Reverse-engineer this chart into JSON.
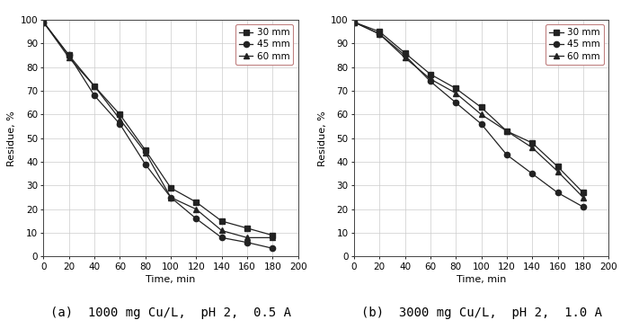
{
  "subplot_a": {
    "title": "(a)  1000 mg Cu/L,  pH 2,  0.5 A",
    "time": [
      0,
      20,
      40,
      60,
      80,
      100,
      120,
      140,
      160,
      180
    ],
    "series": [
      {
        "label": "30 mm",
        "marker": "s",
        "values": [
          99,
          85,
          72,
          60,
          45,
          29,
          23,
          15,
          12,
          9
        ]
      },
      {
        "label": "45 mm",
        "marker": "o",
        "values": [
          99,
          85,
          68,
          56,
          39,
          25,
          16,
          8,
          6,
          3.5
        ]
      },
      {
        "label": "60 mm",
        "marker": "^",
        "values": [
          99,
          84,
          72,
          58,
          44,
          25,
          20,
          11,
          8,
          8
        ]
      }
    ]
  },
  "subplot_b": {
    "title": "(b)  3000 mg Cu/L,  pH 2,  1.0 A",
    "time": [
      0,
      20,
      40,
      60,
      80,
      100,
      120,
      140,
      160,
      180
    ],
    "series": [
      {
        "label": "30 mm",
        "marker": "s",
        "values": [
          99,
          95,
          86,
          77,
          71,
          63,
          53,
          48,
          38,
          27
        ]
      },
      {
        "label": "45 mm",
        "marker": "o",
        "values": [
          99,
          94,
          85,
          74,
          65,
          56,
          43,
          35,
          27,
          21
        ]
      },
      {
        "label": "60 mm",
        "marker": "^",
        "values": [
          99,
          94,
          84,
          75,
          69,
          60,
          53,
          46,
          36,
          25
        ]
      }
    ]
  },
  "xlabel": "Time, min",
  "ylabel": "Residue, %",
  "xlim": [
    0,
    200
  ],
  "ylim": [
    0,
    100
  ],
  "xticks": [
    0,
    20,
    40,
    60,
    80,
    100,
    120,
    140,
    160,
    180,
    200
  ],
  "yticks": [
    0,
    10,
    20,
    30,
    40,
    50,
    60,
    70,
    80,
    90,
    100
  ],
  "line_color": "#222222",
  "grid_color": "#cccccc",
  "marker_size": 4.5,
  "line_width": 0.9,
  "caption_fontsize": 10,
  "label_fontsize": 8,
  "tick_fontsize": 7.5,
  "legend_fontsize": 7.5
}
